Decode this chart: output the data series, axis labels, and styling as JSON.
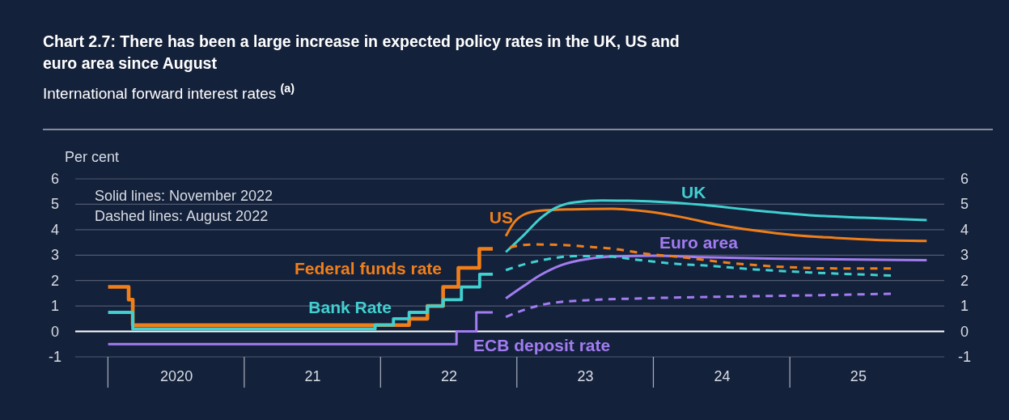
{
  "chart_data": {
    "type": "line",
    "title": "Chart 2.7: There has been a large increase in expected policy rates in the UK, US and euro area since August",
    "subtitle": "International forward interest rates $^{(a)}$",
    "ylabel": "Per cent",
    "xlim": [
      "2019-10-05",
      "2026-02-17"
    ],
    "xticks": [
      {
        "value": "2020-07-01",
        "label": "2020"
      },
      {
        "value": "2021-07-01",
        "label": "21"
      },
      {
        "value": "2022-07-01",
        "label": "22"
      },
      {
        "value": "2023-07-01",
        "label": "23"
      },
      {
        "value": "2024-07-01",
        "label": "24"
      },
      {
        "value": "2025-07-01",
        "label": "25"
      }
    ],
    "ylim": [
      -1,
      6
    ],
    "yticks": [
      -1,
      0,
      1,
      2,
      3,
      4,
      5,
      6
    ],
    "y2lim": [
      -1,
      6
    ],
    "y2ticks": [
      -1,
      0,
      1,
      2,
      3,
      4,
      5,
      6
    ],
    "grid": "y",
    "ref_lines": [
      {
        "axis": "y",
        "value": 0,
        "color": "#ffffff"
      }
    ],
    "annotations": [
      "Solid lines: November 2022",
      "Dashed lines: August 2022"
    ],
    "series": [
      {
        "name": "Federal funds rate",
        "type": "step",
        "color": "#f07f1a",
        "line_style": "solid",
        "x": [
          "2020-01-01",
          "2020-02-25",
          "2020-03-07",
          "2022-03-17",
          "2022-05-05",
          "2022-06-16",
          "2022-07-27",
          "2022-09-21",
          "2022-10-27"
        ],
        "values": [
          1.75,
          1.25,
          0.25,
          0.5,
          1.0,
          1.75,
          2.5,
          3.25,
          3.25
        ]
      },
      {
        "name": "Bank Rate",
        "type": "step",
        "color": "#40d0d0",
        "line_style": "solid",
        "x": [
          "2020-01-01",
          "2020-03-07",
          "2021-12-16",
          "2022-02-03",
          "2022-03-17",
          "2022-05-05",
          "2022-06-16",
          "2022-08-04",
          "2022-09-22",
          "2022-10-27"
        ],
        "values": [
          0.75,
          0.1,
          0.25,
          0.5,
          0.75,
          1.0,
          1.25,
          1.75,
          2.25,
          2.25
        ]
      },
      {
        "name": "ECB deposit rate",
        "type": "step",
        "color": "#a27cf0",
        "line_style": "solid",
        "x": [
          "2020-01-01",
          "2022-07-22",
          "2022-09-13",
          "2022-10-27"
        ],
        "values": [
          -0.5,
          0,
          0.75,
          0.75
        ]
      },
      {
        "name": "US",
        "type": "line",
        "color": "#f07f1a",
        "line_style": "solid",
        "x": [
          "2022-12-01",
          "2022-12-24",
          "2023-01-19",
          "2023-03-04",
          "2023-05-27",
          "2023-09-13",
          "2023-12-13",
          "2024-03-14",
          "2024-06-13",
          "2024-09-27",
          "2025-01-15",
          "2025-05-01",
          "2025-08-19",
          "2026-01-01"
        ],
        "values": [
          3.75,
          4.3,
          4.6,
          4.75,
          4.8,
          4.82,
          4.72,
          4.5,
          4.22,
          3.97,
          3.78,
          3.68,
          3.6,
          3.56
        ]
      },
      {
        "name": "UK",
        "type": "line",
        "color": "#40d0d0",
        "line_style": "solid",
        "x": [
          "2022-12-01",
          "2023-01-19",
          "2023-03-04",
          "2023-04-13",
          "2023-06-03",
          "2023-08-15",
          "2023-10-27",
          "2024-02-09",
          "2024-05-08",
          "2024-09-27",
          "2025-02-21",
          "2025-07-17",
          "2026-01-01"
        ],
        "values": [
          3.12,
          3.8,
          4.45,
          4.86,
          5.08,
          5.15,
          5.14,
          5.08,
          4.98,
          4.76,
          4.57,
          4.47,
          4.38
        ]
      },
      {
        "name": "Euro area",
        "type": "line",
        "color": "#a27cf0",
        "line_style": "solid",
        "x": [
          "2022-12-01",
          "2023-01-19",
          "2023-03-04",
          "2023-04-27",
          "2023-07-09",
          "2023-09-20",
          "2024-01-04",
          "2024-05-08",
          "2024-12-09",
          "2026-01-01"
        ],
        "values": [
          1.3,
          1.8,
          2.22,
          2.6,
          2.85,
          2.95,
          2.98,
          2.92,
          2.86,
          2.8
        ]
      },
      {
        "type": "line",
        "color": "#f07f1a",
        "line_style": "dashed",
        "x": [
          "2022-12-12",
          "2023-01-01",
          "2023-02-14",
          "2023-04-27",
          "2023-07-09",
          "2023-09-20",
          "2023-11-28",
          "2024-03-17",
          "2024-07-19",
          "2024-12-09",
          "2025-05-01",
          "2025-09-27"
        ],
        "values": [
          3.3,
          3.37,
          3.42,
          3.4,
          3.33,
          3.24,
          3.08,
          2.92,
          2.7,
          2.54,
          2.48,
          2.48
        ]
      },
      {
        "type": "line",
        "color": "#40d0d0",
        "line_style": "dashed",
        "x": [
          "2022-12-01",
          "2023-01-19",
          "2023-03-26",
          "2023-06-03",
          "2023-08-15",
          "2023-11-28",
          "2024-03-17",
          "2024-05-08",
          "2024-09-27",
          "2025-02-21",
          "2025-09-27"
        ],
        "values": [
          2.41,
          2.64,
          2.85,
          2.96,
          2.96,
          2.8,
          2.64,
          2.6,
          2.44,
          2.32,
          2.2
        ]
      },
      {
        "type": "line",
        "color": "#a27cf0",
        "line_style": "dashed",
        "x": [
          "2022-12-01",
          "2023-01-19",
          "2023-03-26",
          "2023-07-09",
          "2023-11-28",
          "2024-07-19",
          "2025-02-21",
          "2025-09-27"
        ],
        "values": [
          0.57,
          0.85,
          1.1,
          1.23,
          1.3,
          1.37,
          1.42,
          1.48
        ]
      }
    ]
  }
}
